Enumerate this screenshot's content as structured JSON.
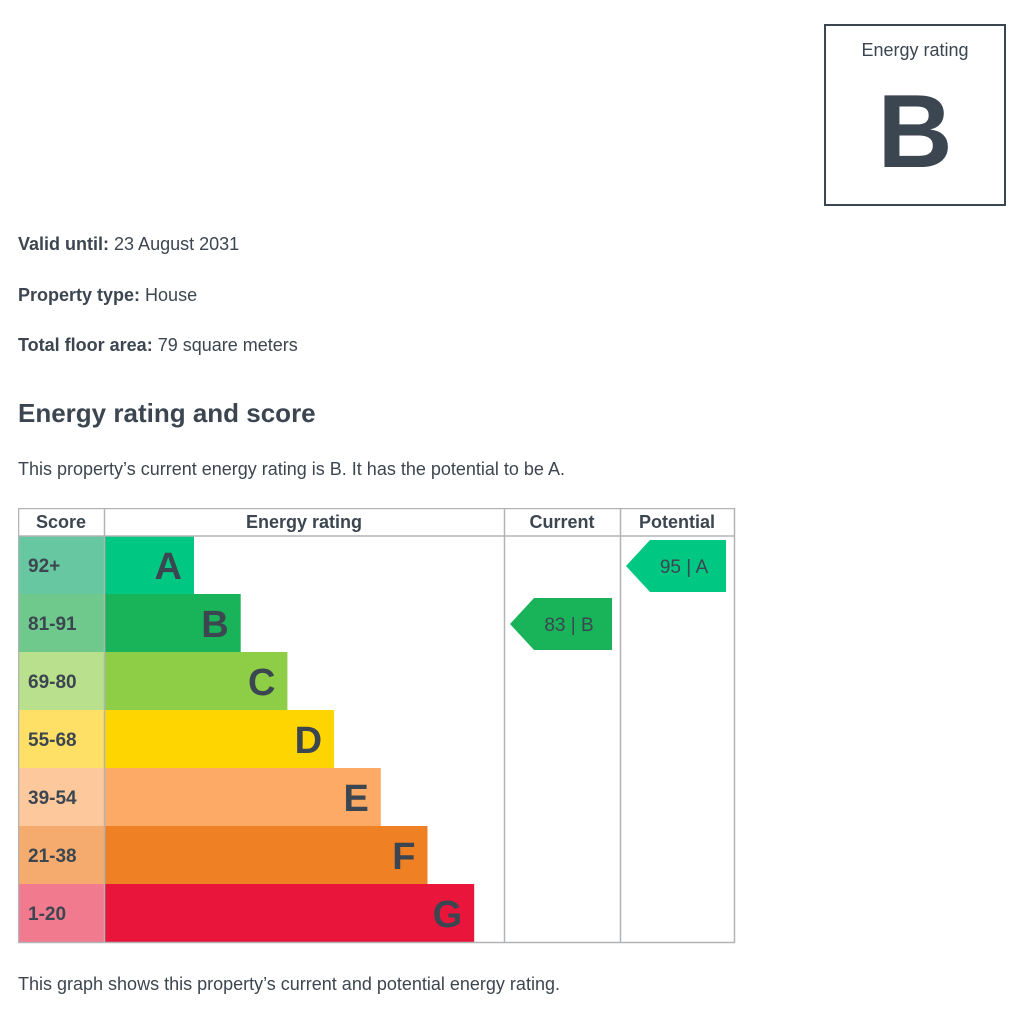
{
  "rating_box": {
    "label": "Energy rating",
    "letter": "B"
  },
  "details": [
    {
      "key": "Valid until:",
      "value": "23 August 2031"
    },
    {
      "key": "Property type:",
      "value": "House"
    },
    {
      "key": "Total floor area:",
      "value": "79 square meters"
    }
  ],
  "section_heading": "Energy rating and score",
  "summary": "This property’s current energy rating is B. It has the potential to be A.",
  "caption": "This graph shows this property’s current and potential energy rating.",
  "chart_data": {
    "type": "table",
    "columns": [
      "Score",
      "Energy rating",
      "Current",
      "Potential"
    ],
    "bands": [
      {
        "score": "92+",
        "letter": "A",
        "color": "#00c781",
        "score_bg": "#66c7a0"
      },
      {
        "score": "81-91",
        "letter": "B",
        "color": "#19b459",
        "score_bg": "#6fc98c"
      },
      {
        "score": "69-80",
        "letter": "C",
        "color": "#8dce46",
        "score_bg": "#b9e08c"
      },
      {
        "score": "55-68",
        "letter": "D",
        "color": "#ffd500",
        "score_bg": "#ffe066"
      },
      {
        "score": "39-54",
        "letter": "E",
        "color": "#fcaa65",
        "score_bg": "#fdc89b"
      },
      {
        "score": "21-38",
        "letter": "F",
        "color": "#ef8023",
        "score_bg": "#f5ab6e"
      },
      {
        "score": "1-20",
        "letter": "G",
        "color": "#e9153b",
        "score_bg": "#f27a8f"
      }
    ],
    "current": {
      "score": 83,
      "letter": "B",
      "label": "83 | B",
      "color": "#19b459"
    },
    "potential": {
      "score": 95,
      "letter": "A",
      "label": "95 | A",
      "color": "#00c781"
    }
  }
}
